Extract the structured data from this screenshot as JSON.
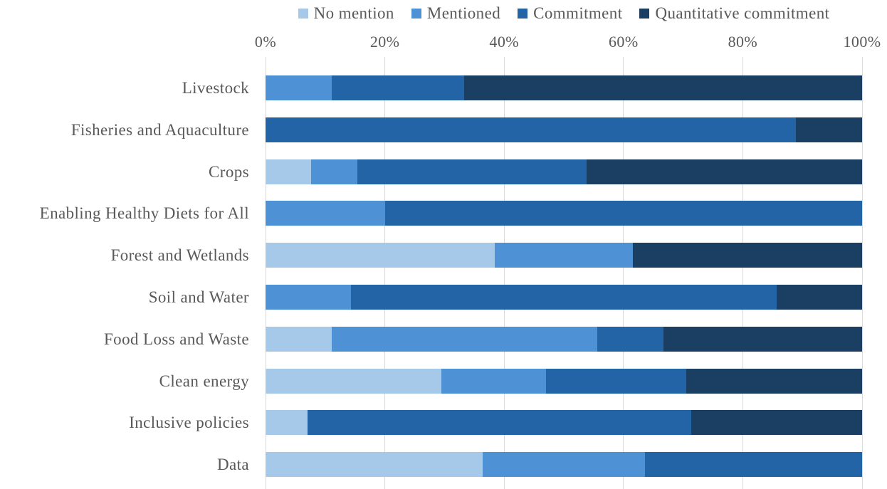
{
  "chart_data": {
    "type": "bar",
    "orientation": "horizontal",
    "stacked": true,
    "value_unit": "percent",
    "categories": [
      "Livestock",
      "Fisheries and Aquaculture",
      "Crops",
      "Enabling Healthy Diets for All",
      "Forest and Wetlands",
      "Soil and Water",
      "Food Loss and Waste",
      "Clean energy",
      "Inclusive policies",
      "Data"
    ],
    "series": [
      {
        "name": "No mention",
        "color": "#A7C9E9",
        "values": [
          0,
          0,
          7.7,
          0,
          38.5,
          0,
          11.1,
          29.4,
          7.1,
          36.4
        ]
      },
      {
        "name": "Mentioned",
        "color": "#4E91D4",
        "values": [
          11.1,
          0,
          7.7,
          20,
          23.1,
          14.3,
          44.4,
          17.6,
          0,
          27.3
        ]
      },
      {
        "name": "Commitment",
        "color": "#2264A6",
        "values": [
          22.2,
          88.9,
          38.5,
          80,
          0,
          71.4,
          11.1,
          23.5,
          64.3,
          36.4
        ]
      },
      {
        "name": "Quantitative commitment",
        "color": "#1B3F63",
        "values": [
          66.7,
          11.1,
          46.2,
          0,
          38.5,
          14.3,
          33.3,
          29.4,
          28.6,
          0
        ]
      }
    ],
    "x_axis": {
      "ticks": [
        "0%",
        "20%",
        "40%",
        "60%",
        "80%",
        "100%"
      ],
      "min": 0,
      "max": 100
    },
    "legend_position": "top",
    "grid": {
      "vertical": true,
      "color": "#D9D9D9"
    },
    "background": "#FFFFFF",
    "text_color": "#595959"
  }
}
